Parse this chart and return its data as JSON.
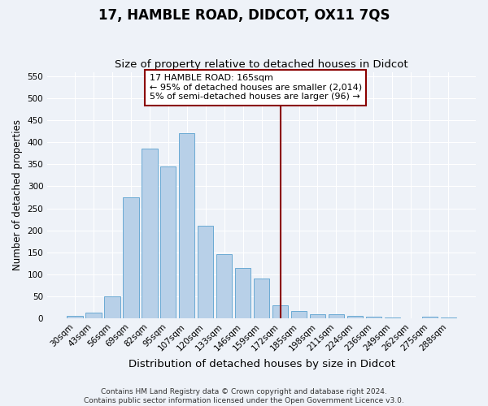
{
  "title": "17, HAMBLE ROAD, DIDCOT, OX11 7QS",
  "subtitle": "Size of property relative to detached houses in Didcot",
  "xlabel": "Distribution of detached houses by size in Didcot",
  "ylabel": "Number of detached properties",
  "categories": [
    "30sqm",
    "43sqm",
    "56sqm",
    "69sqm",
    "82sqm",
    "95sqm",
    "107sqm",
    "120sqm",
    "133sqm",
    "146sqm",
    "159sqm",
    "172sqm",
    "185sqm",
    "198sqm",
    "211sqm",
    "224sqm",
    "236sqm",
    "249sqm",
    "262sqm",
    "275sqm",
    "288sqm"
  ],
  "values": [
    5,
    12,
    50,
    275,
    385,
    345,
    420,
    210,
    145,
    115,
    90,
    30,
    17,
    10,
    10,
    5,
    3,
    1,
    0,
    3,
    1
  ],
  "bar_color": "#b8d0e8",
  "bar_edge_color": "#6aaad4",
  "bg_color": "#eef2f8",
  "grid_color": "#ffffff",
  "vline_color": "#8b0000",
  "annotation_text": "17 HAMBLE ROAD: 165sqm\n← 95% of detached houses are smaller (2,014)\n5% of semi-detached houses are larger (96) →",
  "annotation_box_color": "#8b0000",
  "ylim": [
    0,
    560
  ],
  "yticks": [
    0,
    50,
    100,
    150,
    200,
    250,
    300,
    350,
    400,
    450,
    500,
    550
  ],
  "footer": "Contains HM Land Registry data © Crown copyright and database right 2024.\nContains public sector information licensed under the Open Government Licence v3.0.",
  "title_fontsize": 12,
  "subtitle_fontsize": 9.5,
  "xlabel_fontsize": 9.5,
  "ylabel_fontsize": 8.5,
  "tick_fontsize": 7.5,
  "annotation_fontsize": 8,
  "footer_fontsize": 6.5
}
